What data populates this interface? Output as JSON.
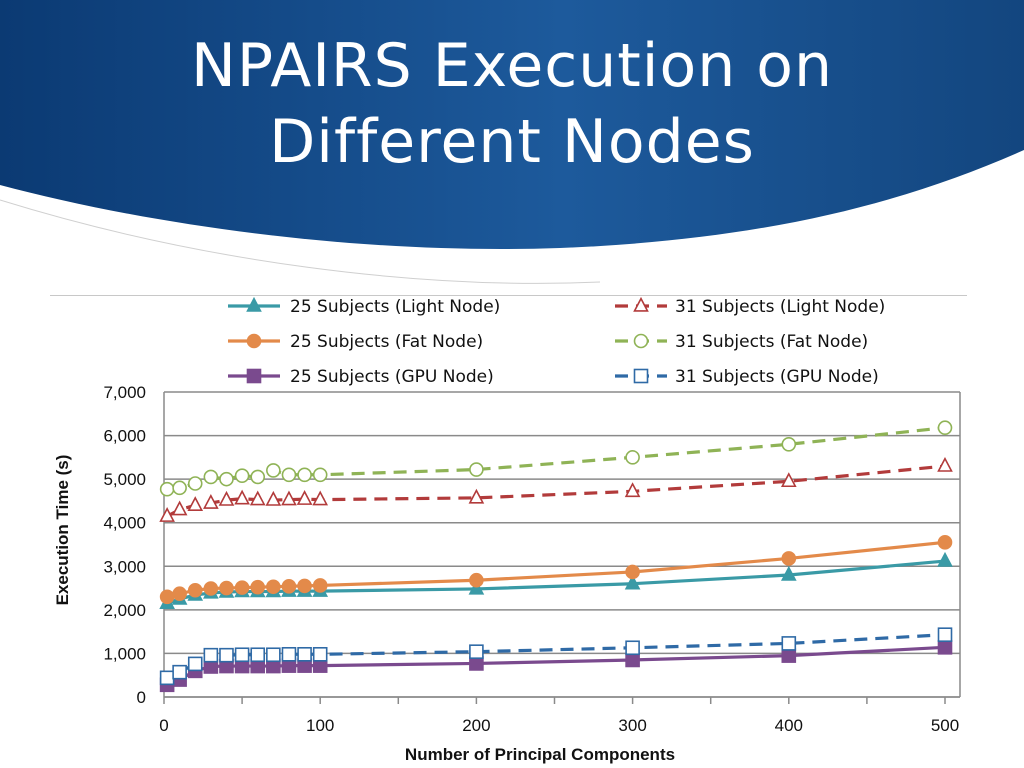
{
  "slide": {
    "title": "NPAIRS Execution on\nDifferent Nodes"
  },
  "colors": {
    "header_dark": "#0d3f7a",
    "header_light": "#2f6fb5",
    "light_node_25": "#3a9aa6",
    "light_node_31": "#b23b3b",
    "fat_node_25": "#e38a4a",
    "fat_node_31": "#8fb356",
    "gpu_node_25": "#7a4a8e",
    "gpu_node_31": "#2f6aa6"
  },
  "chart_data": {
    "type": "line",
    "title": "",
    "xlabel": "Number of Principal Components",
    "ylabel": "Execution Time (s)",
    "xlim": [
      0,
      500
    ],
    "ylim": [
      0,
      7000
    ],
    "x_ticks": [
      "0",
      "100",
      "200",
      "300",
      "400",
      "500"
    ],
    "y_ticks": [
      "0",
      "1,000",
      "2,000",
      "3,000",
      "4,000",
      "5,000",
      "6,000",
      "7,000"
    ],
    "grid": "horizontal",
    "legend_position": "top",
    "series": [
      {
        "name": "25 Subjects (Light Node)",
        "color": "#3a9aa6",
        "dash": "solid",
        "marker": "triangle-filled",
        "x": [
          2,
          10,
          20,
          30,
          40,
          50,
          60,
          70,
          80,
          90,
          100,
          200,
          300,
          400,
          500
        ],
        "y": [
          2150,
          2250,
          2340,
          2390,
          2410,
          2420,
          2420,
          2420,
          2430,
          2430,
          2430,
          2480,
          2600,
          2800,
          3120
        ]
      },
      {
        "name": "25 Subjects (Fat Node)",
        "color": "#e38a4a",
        "dash": "solid",
        "marker": "circle-filled",
        "x": [
          2,
          10,
          20,
          30,
          40,
          50,
          60,
          70,
          80,
          90,
          100,
          200,
          300,
          400,
          500
        ],
        "y": [
          2300,
          2370,
          2450,
          2490,
          2500,
          2510,
          2520,
          2530,
          2540,
          2550,
          2560,
          2680,
          2870,
          3180,
          3550
        ]
      },
      {
        "name": "25 Subjects (GPU Node)",
        "color": "#7a4a8e",
        "dash": "solid",
        "marker": "square-filled",
        "x": [
          2,
          10,
          20,
          30,
          40,
          50,
          60,
          70,
          80,
          90,
          100,
          200,
          300,
          400,
          500
        ],
        "y": [
          280,
          400,
          600,
          700,
          710,
          710,
          710,
          710,
          720,
          720,
          720,
          770,
          850,
          950,
          1140
        ]
      },
      {
        "name": "31 Subjects (Light Node)",
        "color": "#b23b3b",
        "dash": "dashed",
        "marker": "triangle-open",
        "x": [
          2,
          10,
          20,
          30,
          40,
          50,
          60,
          70,
          80,
          90,
          100,
          200,
          300,
          400,
          500
        ],
        "y": [
          4150,
          4300,
          4400,
          4450,
          4520,
          4550,
          4530,
          4520,
          4530,
          4540,
          4530,
          4570,
          4720,
          4950,
          5300
        ]
      },
      {
        "name": "31 Subjects (Fat Node)",
        "color": "#8fb356",
        "dash": "dashed",
        "marker": "circle-open",
        "x": [
          2,
          10,
          20,
          30,
          40,
          50,
          60,
          70,
          80,
          90,
          100,
          200,
          300,
          400,
          500
        ],
        "y": [
          4770,
          4800,
          4900,
          5050,
          5000,
          5080,
          5050,
          5200,
          5100,
          5100,
          5100,
          5220,
          5500,
          5800,
          6180
        ]
      },
      {
        "name": "31 Subjects (GPU Node)",
        "color": "#2f6aa6",
        "dash": "dashed",
        "marker": "square-open",
        "x": [
          2,
          10,
          20,
          30,
          40,
          50,
          60,
          70,
          80,
          90,
          100,
          200,
          300,
          400,
          500
        ],
        "y": [
          440,
          570,
          760,
          960,
          960,
          970,
          970,
          970,
          980,
          980,
          980,
          1040,
          1130,
          1230,
          1430
        ]
      }
    ]
  }
}
